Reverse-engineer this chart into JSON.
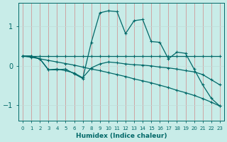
{
  "xlabel": "Humidex (Indice chaleur)",
  "background_color": "#c8ece8",
  "line_color": "#006868",
  "grid_color_v": "#d08888",
  "grid_color_h": "#c0dcd8",
  "xlim": [
    -0.5,
    23.5
  ],
  "ylim": [
    -1.4,
    1.6
  ],
  "yticks": [
    -1,
    0,
    1
  ],
  "xticks": [
    0,
    1,
    2,
    3,
    4,
    5,
    6,
    7,
    8,
    9,
    10,
    11,
    12,
    13,
    14,
    15,
    16,
    17,
    18,
    19,
    20,
    21,
    22,
    23
  ],
  "line_wiggly": [
    0.25,
    0.25,
    0.18,
    -0.1,
    -0.1,
    -0.08,
    -0.2,
    -0.32,
    0.6,
    1.35,
    1.4,
    1.38,
    0.82,
    1.15,
    1.18,
    0.62,
    0.6,
    0.18,
    0.35,
    0.32,
    -0.08,
    -0.48,
    -0.82,
    -1.02
  ],
  "line_flat_upper": [
    0.25,
    0.25,
    0.25,
    0.25,
    0.25,
    0.25,
    0.25,
    0.25,
    0.25,
    0.25,
    0.25,
    0.25,
    0.25,
    0.25,
    0.25,
    0.25,
    0.25,
    0.25,
    0.25,
    0.25,
    0.25,
    0.25,
    0.25,
    0.25
  ],
  "line_mid": [
    0.25,
    0.25,
    0.18,
    -0.1,
    -0.08,
    -0.12,
    -0.18,
    -0.3,
    -0.05,
    0.05,
    0.1,
    0.08,
    0.05,
    0.03,
    0.02,
    0.0,
    -0.03,
    -0.05,
    -0.08,
    -0.12,
    -0.15,
    -0.22,
    -0.35,
    -0.48
  ],
  "line_diagonal": [
    0.25,
    0.22,
    0.18,
    0.14,
    0.1,
    0.06,
    0.02,
    -0.03,
    -0.08,
    -0.12,
    -0.17,
    -0.22,
    -0.27,
    -0.33,
    -0.38,
    -0.43,
    -0.49,
    -0.55,
    -0.62,
    -0.68,
    -0.75,
    -0.83,
    -0.92,
    -1.02
  ]
}
